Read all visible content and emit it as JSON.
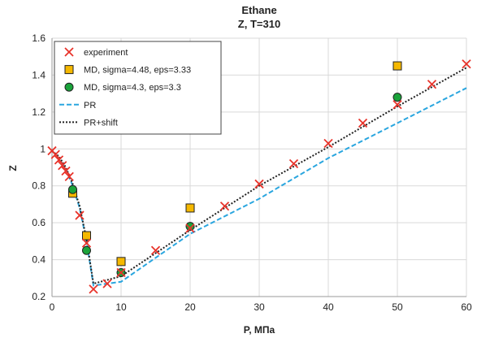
{
  "chart_data": {
    "type": "scatter",
    "title": "Ethane",
    "subtitle": "Z, T=310",
    "xlabel": "P, МПа",
    "ylabel": "Z",
    "xlim": [
      0,
      60
    ],
    "ylim": [
      0.2,
      1.6
    ],
    "xticks": [
      0,
      10,
      20,
      30,
      40,
      50,
      60
    ],
    "yticks": [
      0.2,
      0.4,
      0.6,
      0.8,
      1,
      1.2,
      1.4,
      1.6
    ],
    "grid": true,
    "legend_position": "top-left",
    "series": [
      {
        "name": "experiment",
        "kind": "scatter",
        "marker": "x",
        "color": "#e8332a",
        "x": [
          0,
          0.5,
          1,
          1.5,
          2,
          2.5,
          4,
          5,
          6,
          8,
          10,
          15,
          20,
          25,
          30,
          35,
          40,
          45,
          50,
          55,
          60
        ],
        "y": [
          0.99,
          0.97,
          0.94,
          0.91,
          0.88,
          0.85,
          0.64,
          0.49,
          0.24,
          0.27,
          0.33,
          0.45,
          0.57,
          0.69,
          0.81,
          0.92,
          1.03,
          1.14,
          1.24,
          1.35,
          1.46
        ]
      },
      {
        "name": "MD, sigma=4.48, eps=3.33",
        "kind": "scatter",
        "marker": "square",
        "color": "#f5b800",
        "x": [
          3,
          5,
          10,
          20,
          50
        ],
        "y": [
          0.76,
          0.53,
          0.39,
          0.68,
          1.45
        ]
      },
      {
        "name": "MD, sigma=4.3, eps=3.3",
        "kind": "scatter",
        "marker": "circle",
        "color": "#1aa33a",
        "x": [
          3,
          5,
          10,
          20,
          50
        ],
        "y": [
          0.78,
          0.45,
          0.33,
          0.58,
          1.28
        ]
      },
      {
        "name": "PR",
        "kind": "line",
        "style": "dashed",
        "color": "#2aa6df",
        "x": [
          0,
          1,
          2,
          3,
          4,
          5,
          6,
          10,
          20,
          30,
          40,
          50,
          60
        ],
        "y": [
          0.99,
          0.95,
          0.89,
          0.8,
          0.68,
          0.5,
          0.26,
          0.28,
          0.54,
          0.73,
          0.95,
          1.14,
          1.33
        ]
      },
      {
        "name": "PR+shift",
        "kind": "line",
        "style": "dotted",
        "color": "#222222",
        "x": [
          0,
          1,
          2,
          3,
          4,
          5,
          6,
          10,
          20,
          30,
          40,
          50,
          60
        ],
        "y": [
          0.99,
          0.96,
          0.9,
          0.81,
          0.69,
          0.51,
          0.27,
          0.31,
          0.56,
          0.8,
          1.01,
          1.23,
          1.44
        ]
      }
    ]
  }
}
